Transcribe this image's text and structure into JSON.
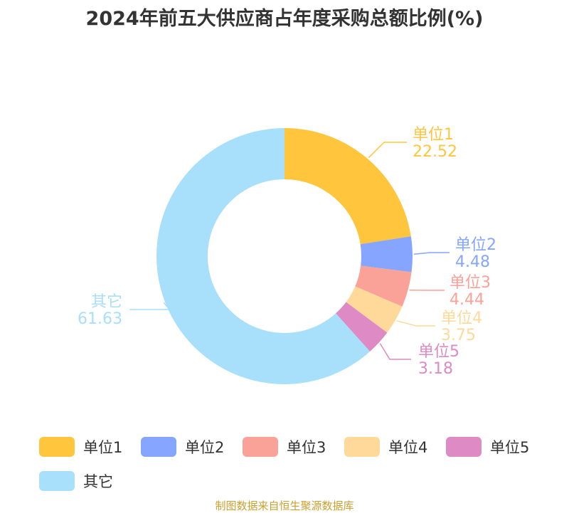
{
  "chart_data": {
    "type": "pie",
    "title": "2024年前五大供应商占年度采购总额比例(%)",
    "categories": [
      "单位1",
      "单位2",
      "单位3",
      "单位4",
      "单位5",
      "其它"
    ],
    "values": [
      22.52,
      4.48,
      4.44,
      3.75,
      3.18,
      61.63
    ],
    "value_labels": [
      "22.52",
      "4.48",
      "4.44",
      "3.75",
      "3.18",
      "61.63"
    ],
    "colors": [
      "#FFC53D",
      "#85A5FF",
      "#FAA298",
      "#FFD999",
      "#DE8AC4",
      "#A8DFFA"
    ],
    "donut": true,
    "legend": "bottom"
  },
  "footer": "制图数据来自恒生聚源数据库"
}
